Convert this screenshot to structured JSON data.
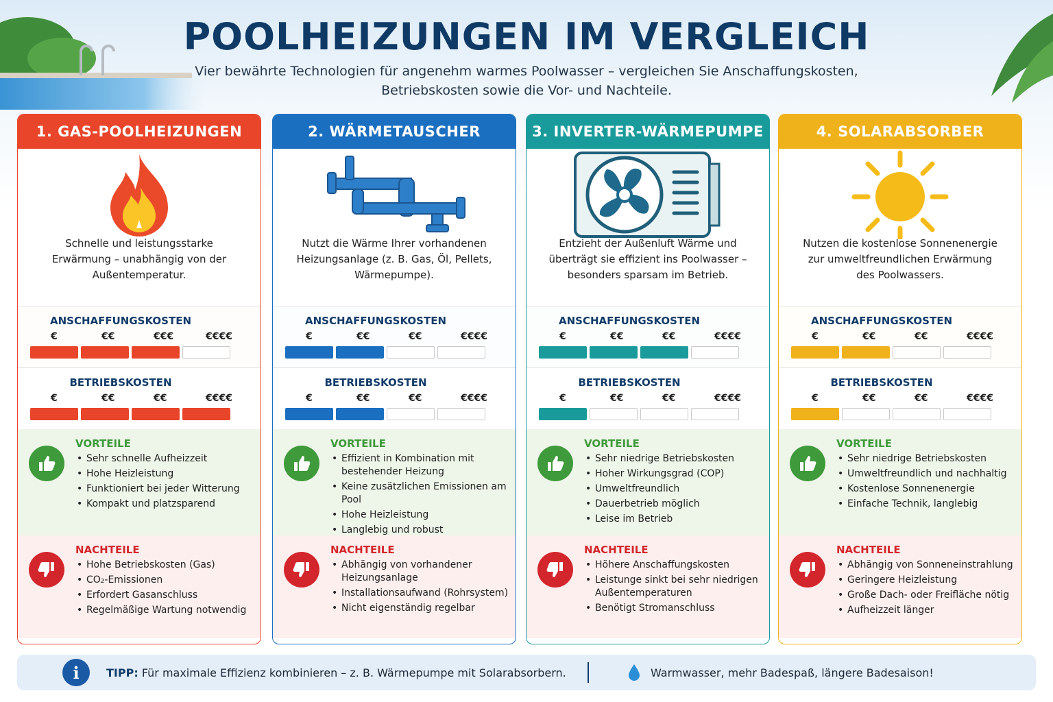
{
  "header": {
    "title": "POOLHEIZUNGEN IM VERGLEICH",
    "subtitle_line1": "Vier bewährte Technologien für angenehm warmes Poolwasser – vergleichen Sie Anschaffungskosten,",
    "subtitle_line2": "Betriebskosten sowie die Vor- und Nachteile."
  },
  "labels": {
    "anschaffung": "ANSCHAFFUNGSKOSTEN",
    "betrieb": "BETRIEBSKOSTEN",
    "vorteile": "VORTEILE",
    "nachteile": "NACHTEILE"
  },
  "cards": [
    {
      "title": "1. GAS-POOLHEIZUNGEN",
      "color": "#e8452a",
      "tint_bg": "#fdeee9",
      "icon": "flame-icon",
      "description": "Schnelle und leistungsstarke Erwärmung – unabhängig von der Außentemperatur.",
      "anschaffung_labels": [
        "€",
        "€€",
        "€€€",
        "€€€€"
      ],
      "anschaffung_level": 3,
      "betrieb_labels": [
        "€",
        "€€",
        "€€",
        "€€€€"
      ],
      "betrieb_level": 4,
      "vorteile": [
        "Sehr schnelle Aufheizzeit",
        "Hohe Heizleistung",
        "Funktioniert bei jeder Witterung",
        "Kompakt und platzsparend"
      ],
      "nachteile": [
        "Hohe Betriebskosten (Gas)",
        "CO₂-Emissionen",
        "Erfordert Gasanschluss",
        "Regelmäßige Wartung notwendig"
      ]
    },
    {
      "title": "2. WÄRMETAUSCHER",
      "color": "#1b6fc0",
      "tint_bg": "#e9f1fa",
      "icon": "pipe-icon",
      "description": "Nutzt die Wärme Ihrer vorhandenen Heizungsanlage (z. B. Gas, Öl, Pellets, Wärmepumpe).",
      "anschaffung_labels": [
        "€",
        "€€",
        "€€",
        "€€€€"
      ],
      "anschaffung_level": 2,
      "betrieb_labels": [
        "€",
        "€€",
        "€€",
        "€€€€"
      ],
      "betrieb_level": 2,
      "vorteile": [
        "Effizient in Kombination mit bestehender Heizung",
        "Keine zusätzlichen Emissionen am Pool",
        "Hohe Heizleistung",
        "Langlebig und robust"
      ],
      "nachteile": [
        "Abhängig von vorhandener Heizungsanlage",
        "Installationsaufwand (Rohrsystem)",
        "Nicht eigenständig regelbar"
      ]
    },
    {
      "title": "3. INVERTER-WÄRMEPUMPE",
      "color": "#1a9b9b",
      "tint_bg": "#e6f4f3",
      "icon": "heat-pump-icon",
      "description": "Entzieht der Außenluft Wärme und überträgt sie effizient ins Poolwasser – besonders sparsam im Betrieb.",
      "anschaffung_labels": [
        "€",
        "€€",
        "€€",
        "€€€€"
      ],
      "anschaffung_level": 3,
      "betrieb_labels": [
        "€",
        "€€",
        "€€",
        "€€€€"
      ],
      "betrieb_level": 1,
      "vorteile": [
        "Sehr niedrige Betriebskosten",
        "Hoher Wirkungsgrad (COP)",
        "Umweltfreundlich",
        "Dauerbetrieb möglich",
        "Leise im Betrieb"
      ],
      "nachteile": [
        "Höhere Anschaffungskosten",
        "Leistunge sinkt bei sehr niedrigen Außentemperaturen",
        "Benötigt Stromanschluss"
      ]
    },
    {
      "title": "4. SOLARABSORBER",
      "color": "#f0b21a",
      "tint_bg": "#fdf6e3",
      "icon": "sun-icon",
      "description": "Nutzen die kostenlose Sonnenenergie zur umweltfreundlichen Erwärmung des Poolwassers.",
      "anschaffung_labels": [
        "€",
        "€€",
        "€€",
        "€€€€"
      ],
      "anschaffung_level": 2,
      "betrieb_labels": [
        "€",
        "€€",
        "€€",
        "€€€€"
      ],
      "betrieb_level": 1,
      "vorteile": [
        "Sehr niedrige Betriebskosten",
        "Umweltfreundlich und nachhaltig",
        "Kostenlose Sonnenenergie",
        "Einfache Technik, langlebig"
      ],
      "nachteile": [
        "Abhängig von Sonneneinstrahlung",
        "Geringere Heizleistung",
        "Große Dach- oder Freifläche nötig",
        "Aufheizzeit länger"
      ]
    }
  ],
  "footer": {
    "tip_label": "TIPP:",
    "tip_text": "Für maximale Effizienz kombinieren – z. B. Wärmepumpe mit Solarabsorbern.",
    "slogan": "Warmwasser, mehr Badespaß, längere Badesaison!"
  },
  "colors": {
    "pros_green": "#3e9a3a",
    "cons_red": "#d3262c",
    "title_blue": "#0f3a66"
  }
}
